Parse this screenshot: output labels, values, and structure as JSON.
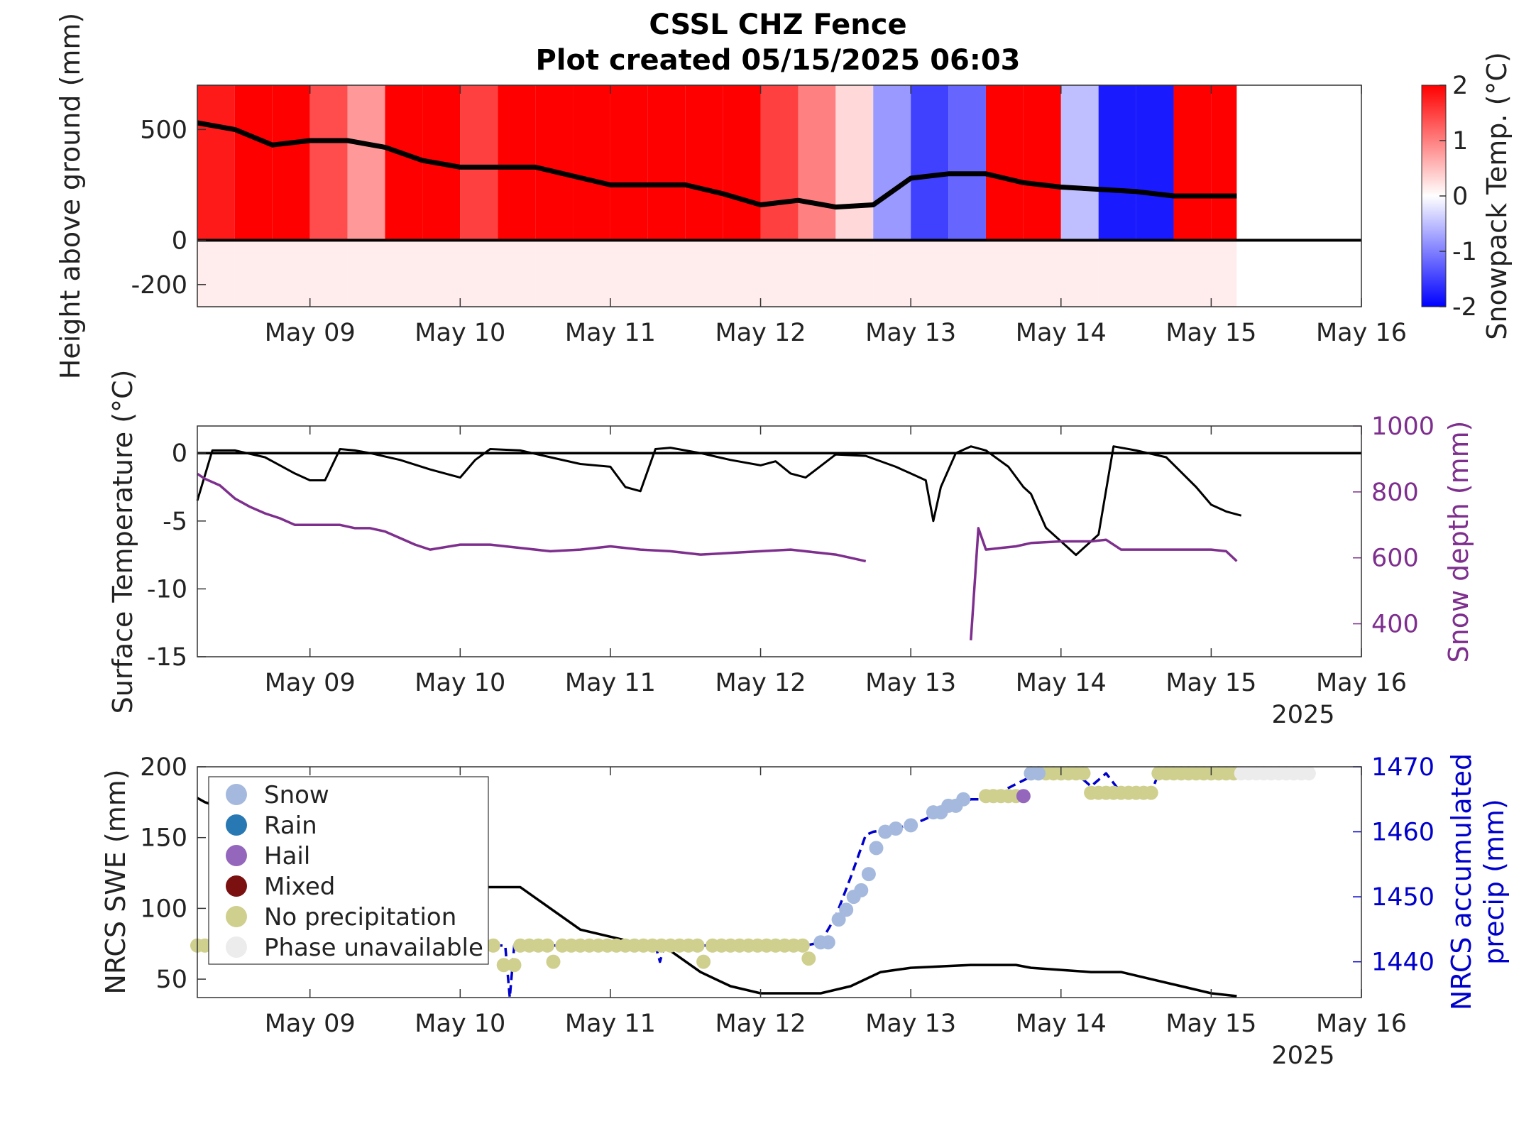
{
  "figure": {
    "title_line1": "CSSL CHZ Fence",
    "title_line2": "Plot created 05/15/2025 06:03"
  },
  "colors": {
    "warm": "#ff0000",
    "cold": "#0000ff",
    "neutral": "#ffffff",
    "snow_depth": "#7e2f8e",
    "accum_precip": "#0000cc",
    "phase_snow": "#a4b9dd",
    "phase_rain": "#2878b4",
    "phase_hail": "#9467bd",
    "phase_mixed": "#7b1010",
    "phase_none": "#cfcf8e",
    "phase_unavailable": "#ececec"
  },
  "chart_data": [
    {
      "type": "heatmap",
      "ylabel": "Height above ground (mm)",
      "colorbar_label": "Snowpack Temp. (°C)",
      "colorbar_range": [
        -2,
        2
      ],
      "colorbar_ticks": [
        "2",
        "1",
        "0",
        "-1",
        "-2"
      ],
      "xlim": [
        8.25,
        16.0
      ],
      "ylim": [
        -300,
        700
      ],
      "x_ticks": [
        9,
        10,
        11,
        12,
        13,
        14,
        15,
        16
      ],
      "x_tick_labels": [
        "May 09",
        "May 10",
        "May 11",
        "May 12",
        "May 13",
        "May 14",
        "May 15",
        "May 16"
      ],
      "y_ticks": [
        500,
        0,
        -200
      ],
      "y_tick_labels": [
        "500",
        "0",
        "-200"
      ],
      "time_columns": [
        8.25,
        8.5,
        8.75,
        9.0,
        9.25,
        9.5,
        9.75,
        10.0,
        10.25,
        10.5,
        10.75,
        11.0,
        11.25,
        11.5,
        11.75,
        12.0,
        12.25,
        12.5,
        12.75,
        13.0,
        13.25,
        13.5,
        13.75,
        14.0,
        14.25,
        14.5,
        14.75,
        15.0
      ],
      "surface_temperature_above_snow": [
        1.8,
        2,
        2,
        1.4,
        0.8,
        2,
        2,
        1.5,
        2,
        2,
        2,
        2,
        2,
        2,
        2,
        1.5,
        1,
        0.3,
        -0.8,
        -1.5,
        -1.2,
        2,
        2,
        -0.5,
        -1.8,
        -1.8,
        2,
        2
      ],
      "soil_temperature_below_ground": 0.15,
      "snow_height": {
        "x": [
          8.25,
          8.5,
          8.75,
          9.0,
          9.25,
          9.5,
          9.75,
          10.0,
          10.25,
          10.5,
          10.75,
          11.0,
          11.25,
          11.5,
          11.75,
          12.0,
          12.25,
          12.5,
          12.75,
          13.0,
          13.25,
          13.5,
          13.75,
          14.0,
          14.25,
          14.5,
          14.75,
          15.0,
          15.17
        ],
        "y": [
          530,
          500,
          430,
          450,
          450,
          420,
          360,
          330,
          330,
          330,
          290,
          250,
          250,
          250,
          210,
          160,
          180,
          150,
          160,
          280,
          300,
          300,
          260,
          240,
          230,
          220,
          200,
          200,
          200
        ]
      }
    },
    {
      "type": "line",
      "ylabel": "Surface Temperature (°C)",
      "y2label": "Snow depth (mm)",
      "xlim": [
        8.25,
        16.0
      ],
      "ylim": [
        -15,
        2
      ],
      "y2lim": [
        300,
        1000
      ],
      "year_label": "2025",
      "x_ticks": [
        9,
        10,
        11,
        12,
        13,
        14,
        15,
        16
      ],
      "x_tick_labels": [
        "May 09",
        "May 10",
        "May 11",
        "May 12",
        "May 13",
        "May 14",
        "May 15",
        "May 16"
      ],
      "y_ticks": [
        0,
        -5,
        -10,
        -15
      ],
      "y_tick_labels": [
        "0",
        "-5",
        "-10",
        "-15"
      ],
      "y2_ticks": [
        1000,
        800,
        600,
        400
      ],
      "y2_tick_labels": [
        "1000",
        "800",
        "600",
        "400"
      ],
      "series": [
        {
          "axis": "left",
          "x": [
            8.25,
            8.35,
            8.5,
            8.7,
            8.9,
            9.0,
            9.1,
            9.2,
            9.3,
            9.4,
            9.6,
            9.8,
            10.0,
            10.1,
            10.2,
            10.4,
            10.6,
            10.8,
            11.0,
            11.1,
            11.2,
            11.3,
            11.4,
            11.6,
            11.8,
            12.0,
            12.1,
            12.2,
            12.3,
            12.5,
            12.7,
            12.9,
            13.0,
            13.1,
            13.15,
            13.2,
            13.3,
            13.4,
            13.5,
            13.65,
            13.75,
            13.8,
            13.9,
            14.0,
            14.1,
            14.25,
            14.35,
            14.5,
            14.7,
            14.9,
            15.0,
            15.1,
            15.2
          ],
          "y": [
            -3.5,
            0.2,
            0.2,
            -0.3,
            -1.5,
            -2.0,
            -2.0,
            0.3,
            0.2,
            0.0,
            -0.5,
            -1.2,
            -1.8,
            -0.5,
            0.3,
            0.2,
            -0.3,
            -0.8,
            -1.0,
            -2.5,
            -2.8,
            0.3,
            0.4,
            0.0,
            -0.5,
            -0.9,
            -0.6,
            -1.5,
            -1.8,
            -0.1,
            -0.2,
            -1.0,
            -1.5,
            -2.0,
            -5.0,
            -2.5,
            0.0,
            0.5,
            0.2,
            -1.0,
            -2.5,
            -3.0,
            -5.5,
            -6.5,
            -7.5,
            -6.0,
            0.5,
            0.2,
            -0.3,
            -2.5,
            -3.8,
            -4.3,
            -4.6
          ]
        },
        {
          "axis": "right",
          "segments": [
            {
              "x": [
                8.25,
                8.3,
                8.4,
                8.5,
                8.6,
                8.7,
                8.8,
                8.9,
                9.0,
                9.1,
                9.2,
                9.3,
                9.4,
                9.5,
                9.6,
                9.7,
                9.8,
                10.0,
                10.2,
                10.4,
                10.6,
                10.8,
                11.0,
                11.2,
                11.4,
                11.6,
                11.8,
                12.0,
                12.2,
                12.4,
                12.5,
                12.6,
                12.7
              ],
              "y": [
                855,
                840,
                820,
                780,
                755,
                735,
                720,
                700,
                700,
                700,
                700,
                690,
                690,
                680,
                660,
                640,
                625,
                640,
                640,
                630,
                620,
                625,
                635,
                625,
                620,
                610,
                615,
                620,
                625,
                615,
                610,
                600,
                590
              ]
            },
            {
              "x": [
                13.4,
                13.45,
                13.5,
                13.6,
                13.7,
                13.8,
                14.0,
                14.2,
                14.3,
                14.4,
                14.6,
                14.8,
                15.0,
                15.1,
                15.17
              ],
              "y": [
                350,
                690,
                625,
                630,
                635,
                645,
                650,
                650,
                655,
                625,
                625,
                625,
                625,
                620,
                590
              ]
            }
          ]
        }
      ]
    },
    {
      "type": "line",
      "ylabel": "NRCS SWE (mm)",
      "y2label": "NRCS accumulated precip (mm)",
      "xlim": [
        8.25,
        16.0
      ],
      "ylim": [
        37,
        200
      ],
      "y2lim": [
        1434.5,
        1470
      ],
      "year_label": "2025",
      "x_ticks": [
        9,
        10,
        11,
        12,
        13,
        14,
        15,
        16
      ],
      "x_tick_labels": [
        "May 09",
        "May 10",
        "May 11",
        "May 12",
        "May 13",
        "May 14",
        "May 15",
        "May 16"
      ],
      "y_ticks": [
        200,
        150,
        100,
        50
      ],
      "y_tick_labels": [
        "200",
        "150",
        "100",
        "50"
      ],
      "y2_ticks": [
        1470,
        1460,
        1450,
        1440
      ],
      "y2_tick_labels": [
        "1470",
        "1460",
        "1450",
        "1440"
      ],
      "legend_position": "top-left",
      "legend": [
        "Snow",
        "Rain",
        "Hail",
        "Mixed",
        "No precipitation",
        "Phase unavailable"
      ],
      "swe": {
        "x": [
          8.25,
          8.3,
          10.0,
          10.4,
          10.6,
          10.8,
          11.0,
          11.4,
          11.6,
          11.8,
          12.0,
          12.2,
          12.4,
          12.6,
          12.8,
          13.0,
          13.4,
          13.7,
          13.8,
          14.2,
          14.4,
          14.6,
          14.8,
          15.0,
          15.17
        ],
        "y": [
          178,
          175,
          115,
          115,
          100,
          85,
          80,
          70,
          55,
          45,
          40,
          40,
          40,
          45,
          55,
          58,
          60,
          60,
          58,
          55,
          55,
          50,
          45,
          40,
          38
        ]
      },
      "accum_precip": {
        "x": [
          8.25,
          10.3,
          10.33,
          10.36,
          11.3,
          11.33,
          11.36,
          12.3,
          12.4,
          12.5,
          12.6,
          12.7,
          12.75,
          13.0,
          13.2,
          13.3,
          13.4,
          13.5,
          13.8,
          13.9,
          14.1,
          14.2,
          14.3,
          14.4,
          14.6,
          14.65,
          15.17
        ],
        "y": [
          1442.5,
          1442.5,
          1434.5,
          1442.5,
          1442.5,
          1440.0,
          1442.5,
          1442.5,
          1443.0,
          1447.0,
          1453.0,
          1459.5,
          1460.0,
          1461.0,
          1463.0,
          1464.0,
          1465.0,
          1465.0,
          1468.5,
          1469.0,
          1469.0,
          1467.0,
          1469.0,
          1466.0,
          1466.0,
          1469.0,
          1469.0
        ]
      },
      "phase_markers": [
        {
          "phase": "No precipitation",
          "x": [
            8.25,
            8.3,
            8.36,
            8.42,
            8.48,
            8.54,
            8.6,
            8.66,
            8.72,
            8.78,
            8.84,
            8.9,
            8.96,
            9.02,
            9.08,
            9.14,
            9.2,
            9.26,
            9.32,
            9.38,
            9.44,
            9.5,
            9.56,
            9.62,
            9.68,
            9.74,
            9.8,
            9.86,
            9.92,
            9.98,
            10.04,
            10.1,
            10.16,
            10.22,
            10.29,
            10.36,
            10.4,
            10.46,
            10.52,
            10.58,
            10.62,
            10.68,
            10.74,
            10.8,
            10.86,
            10.92,
            10.98,
            11.04,
            11.1,
            11.16,
            11.22,
            11.28,
            11.34,
            11.4,
            11.46,
            11.52,
            11.58,
            11.62,
            11.68,
            11.74,
            11.8,
            11.86,
            11.92,
            11.98,
            12.04,
            12.1,
            12.16,
            12.22,
            12.28,
            12.32,
            13.5,
            13.55,
            13.6,
            13.65,
            13.7,
            13.8,
            13.85,
            13.9,
            13.95,
            14.0,
            14.05,
            14.1,
            14.15,
            14.2,
            14.25,
            14.3,
            14.35,
            14.4,
            14.45,
            14.5,
            14.55,
            14.6,
            14.65,
            14.7,
            14.75,
            14.8,
            14.85,
            14.9,
            14.95,
            15.0,
            15.05,
            15.1,
            15.15
          ],
          "y": [
            1442.5,
            1442.5,
            1442.5,
            1442.5,
            1442.5,
            1442.5,
            1442.5,
            1442.5,
            1442.5,
            1442.5,
            1442.5,
            1442.5,
            1442.5,
            1442.5,
            1442.5,
            1442.5,
            1442.5,
            1442.5,
            1442.5,
            1442.5,
            1442.5,
            1442.5,
            1442.5,
            1442.5,
            1442.5,
            1442.5,
            1442.5,
            1442.5,
            1442.5,
            1442.5,
            1442.5,
            1442.5,
            1442.5,
            1442.5,
            1439.5,
            1439.5,
            1442.5,
            1442.5,
            1442.5,
            1442.5,
            1440.0,
            1442.5,
            1442.5,
            1442.5,
            1442.5,
            1442.5,
            1442.5,
            1442.5,
            1442.5,
            1442.5,
            1442.5,
            1442.5,
            1442.5,
            1442.5,
            1442.5,
            1442.5,
            1442.5,
            1440.0,
            1442.5,
            1442.5,
            1442.5,
            1442.5,
            1442.5,
            1442.5,
            1442.5,
            1442.5,
            1442.5,
            1442.5,
            1442.5,
            1440.5,
            1465.5,
            1465.5,
            1465.5,
            1465.5,
            1465.5,
            1469.0,
            1469.0,
            1469.0,
            1469.0,
            1469.0,
            1469.0,
            1469.0,
            1469.0,
            1466.0,
            1466.0,
            1466.0,
            1466.0,
            1466.0,
            1466.0,
            1466.0,
            1466.0,
            1466.0,
            1469.0,
            1469.0,
            1469.0,
            1469.0,
            1469.0,
            1469.0,
            1469.0,
            1469.0,
            1469.0,
            1469.0,
            1469.0
          ]
        },
        {
          "phase": "Snow",
          "x": [
            12.4,
            12.45,
            12.52,
            12.57,
            12.62,
            12.67,
            12.72,
            12.77,
            12.83,
            12.9,
            13.0,
            13.15,
            13.2,
            13.25,
            13.3,
            13.35,
            13.8,
            13.85
          ],
          "y": [
            1443.0,
            1443.0,
            1446.5,
            1448.0,
            1450.0,
            1451.0,
            1453.5,
            1457.5,
            1460.0,
            1460.5,
            1461.0,
            1463.0,
            1463.0,
            1464.0,
            1464.0,
            1465.0,
            1469.0,
            1469.0
          ]
        },
        {
          "phase": "Hail",
          "x": [
            13.75
          ],
          "y": [
            1465.5
          ]
        },
        {
          "phase": "Phase unavailable",
          "x": [
            15.2,
            15.25,
            15.3,
            15.35,
            15.4,
            15.45,
            15.5,
            15.55,
            15.6,
            15.65
          ],
          "y": [
            1469.0,
            1469.0,
            1469.0,
            1469.0,
            1469.0,
            1469.0,
            1469.0,
            1469.0,
            1469.0,
            1469.0
          ]
        }
      ]
    }
  ]
}
